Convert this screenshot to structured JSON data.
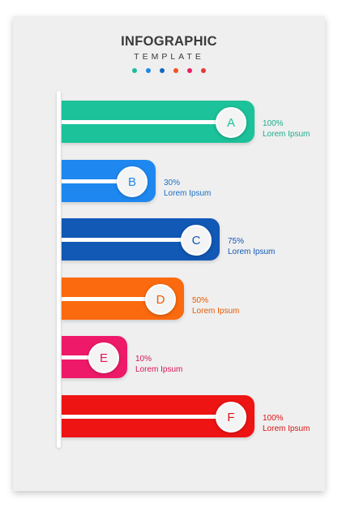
{
  "header": {
    "title": "INFOGRAPHIC",
    "subtitle": "TEMPLATE"
  },
  "palette_dots": [
    "#1abc9c",
    "#1e88e5",
    "#1565c0",
    "#f4511e",
    "#e91e63",
    "#e53935"
  ],
  "items": [
    {
      "letter": "A",
      "percent": "100%",
      "text": "Lorem Ipsum",
      "value": 100,
      "color": "#1cc29a",
      "marker_color": "#1cc29a",
      "text_color": "#1cae8c"
    },
    {
      "letter": "B",
      "percent": "30%",
      "text": "Lorem Ipsum",
      "value": 30,
      "color": "#1e88f0",
      "marker_color": "#1e88f0",
      "text_color": "#1a6fc4"
    },
    {
      "letter": "C",
      "percent": "75%",
      "text": "Lorem Ipsum",
      "value": 75,
      "color": "#1258b5",
      "marker_color": "#1258b5",
      "text_color": "#1258b5"
    },
    {
      "letter": "D",
      "percent": "50%",
      "text": "Lorem Ipsum",
      "value": 50,
      "color": "#fb6a0e",
      "marker_color": "#f05a00",
      "text_color": "#e65a00"
    },
    {
      "letter": "E",
      "percent": "10%",
      "text": "Lorem Ipsum",
      "value": 10,
      "color": "#ee1a69",
      "marker_color": "#e0155e",
      "text_color": "#d8145a"
    },
    {
      "letter": "F",
      "percent": "100%",
      "text": "Lorem Ipsum",
      "value": 100,
      "color": "#ee1414",
      "marker_color": "#d71515",
      "text_color": "#d71515"
    }
  ]
}
